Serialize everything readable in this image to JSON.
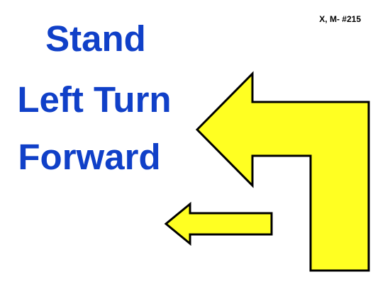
{
  "sign": {
    "code": "X, M- #215",
    "lines": [
      "Stand",
      "Left Turn",
      "Forward"
    ]
  },
  "icons": {
    "turn_arrow": "left-turn-arrow-icon",
    "forward_arrow": "left-arrow-icon"
  },
  "colors": {
    "text": "#1040c8",
    "arrow_fill": "#ffff22",
    "arrow_stroke": "#000000",
    "background": "#ffffff"
  }
}
